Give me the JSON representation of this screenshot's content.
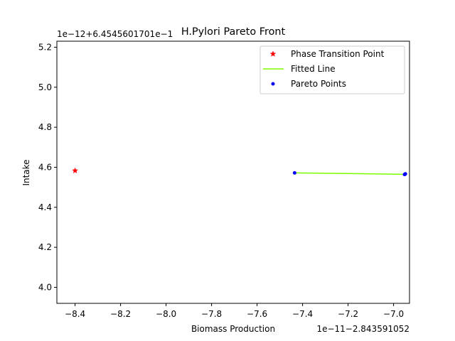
{
  "chart_data": {
    "type": "scatter",
    "title": "H.Pylori Pareto Front",
    "xlabel": "Biomass Production",
    "ylabel": "Intake",
    "x_offset_text": "1e−11−2.843591052",
    "y_offset_text": "1e−12+6.45456017​01e−1",
    "xlim": [
      -8.48,
      -6.93
    ],
    "ylim": [
      3.92,
      5.23
    ],
    "xticks": [
      -8.4,
      -8.2,
      -8.0,
      -7.8,
      -7.6,
      -7.4,
      -7.2,
      -7.0
    ],
    "xtick_labels": [
      "−8.4",
      "−8.2",
      "−8.0",
      "−7.8",
      "−7.6",
      "−7.4",
      "−7.2",
      "−7.0"
    ],
    "yticks": [
      4.0,
      4.2,
      4.4,
      4.6,
      4.8,
      5.0,
      5.2
    ],
    "ytick_labels": [
      "4.0",
      "4.2",
      "4.4",
      "4.6",
      "4.8",
      "5.0",
      "5.2"
    ],
    "grid": false,
    "legend_position": "top-right",
    "series": [
      {
        "name": "Phase Transition Point",
        "kind": "marker-star",
        "color": "#ff0000",
        "points": [
          [
            -8.4,
            4.583
          ]
        ]
      },
      {
        "name": "Fitted Line",
        "kind": "line",
        "color": "#7cfc00",
        "points": [
          [
            -7.435,
            4.572
          ],
          [
            -6.95,
            4.565
          ]
        ]
      },
      {
        "name": "Pareto Points",
        "kind": "marker-dot",
        "color": "#0000ff",
        "points": [
          [
            -7.435,
            4.572
          ],
          [
            -6.95,
            4.565
          ],
          [
            -6.948,
            4.567
          ],
          [
            -6.952,
            4.564
          ]
        ]
      }
    ]
  }
}
